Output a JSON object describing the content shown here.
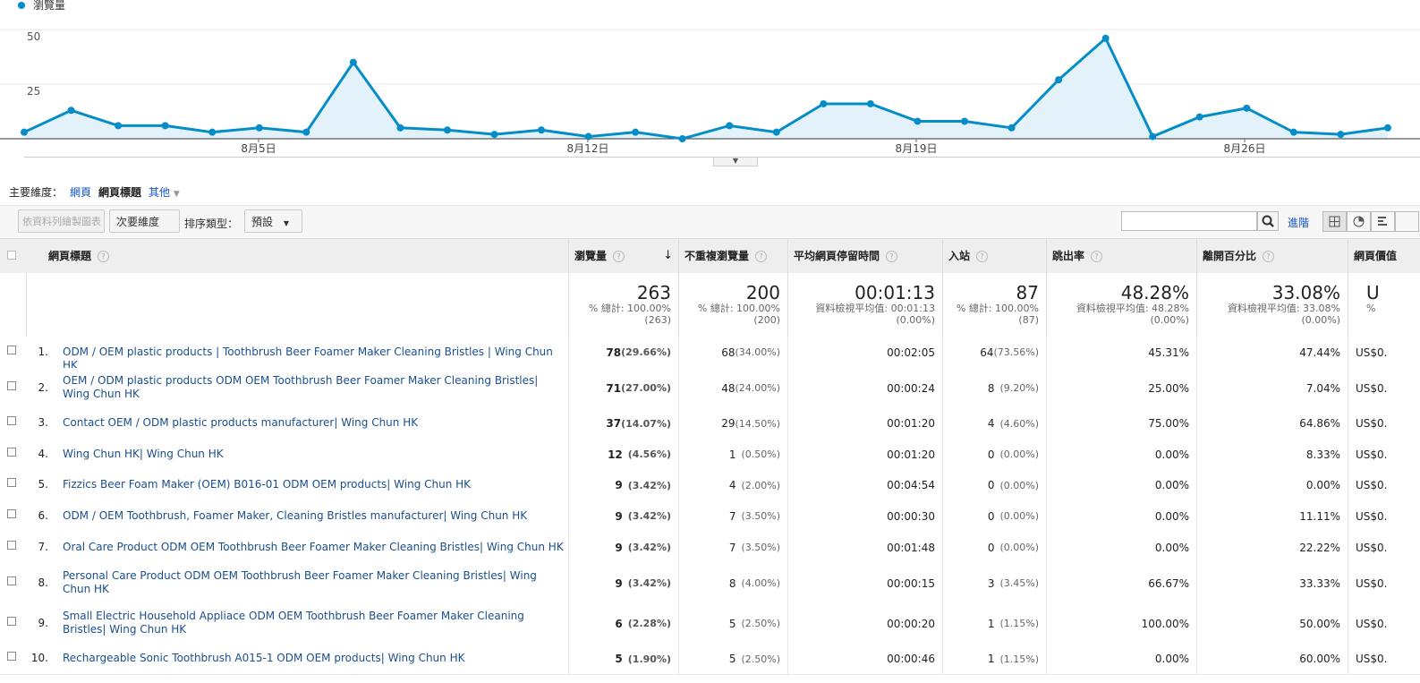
{
  "chart": {
    "legend": "瀏覽量",
    "y_ticks": [
      "50",
      "25"
    ],
    "x_labels": [
      "8月5日",
      "8月12日",
      "8月19日",
      "8月26日"
    ],
    "colors": {
      "line": "#058dc7",
      "fill": "#e3f2fa",
      "grid": "#e8e8e8"
    }
  },
  "chart_data": {
    "type": "area",
    "series": [
      {
        "name": "瀏覽量",
        "values": [
          3,
          13,
          6,
          6,
          3,
          5,
          3,
          35,
          5,
          4,
          2,
          4,
          1,
          3,
          0,
          6,
          3,
          16,
          16,
          8,
          8,
          5,
          27,
          46,
          1,
          10,
          14,
          3,
          2,
          5
        ]
      }
    ],
    "ylim": [
      0,
      50
    ],
    "x_tick_labels": [
      "8月5日",
      "8月12日",
      "8月19日",
      "8月26日"
    ]
  },
  "dimension": {
    "label": "主要維度：",
    "items": [
      "網頁",
      "網頁標題",
      "其他"
    ]
  },
  "toolbar": {
    "plot_rows": "依資料列繪製圖表",
    "secondary": "次要維度",
    "sort_label": "排序類型：",
    "sort_value": "預設",
    "advanced": "進階"
  },
  "table": {
    "headers": [
      "網頁標題",
      "瀏覽量",
      "不重複瀏覽量",
      "平均網頁停留時間",
      "入站",
      "跳出率",
      "離開百分比",
      "網頁價值"
    ],
    "totals": [
      {
        "big": "263",
        "sub1": "% 總計: 100.00%",
        "sub2": "(263)"
      },
      {
        "big": "200",
        "sub1": "% 總計: 100.00%",
        "sub2": "(200)"
      },
      {
        "big": "00:01:13",
        "sub1": "資料檢視平均值: 00:01:13",
        "sub2": "(0.00%)"
      },
      {
        "big": "87",
        "sub1": "% 總計: 100.00%",
        "sub2": "(87)"
      },
      {
        "big": "48.28%",
        "sub1": "資料檢視平均值: 48.28%",
        "sub2": "(0.00%)"
      },
      {
        "big": "33.08%",
        "sub1": "資料檢視平均值: 33.08%",
        "sub2": "(0.00%)"
      },
      {
        "big": "U",
        "sub1": "%",
        "sub2": ""
      }
    ],
    "rows": [
      {
        "n": "1.",
        "title": "ODM / OEM plastic products | Toothbrush Beer Foamer Maker Cleaning Bristles | Wing Chun HK",
        "pv": "78",
        "pvp": "(29.66%)",
        "upv": "68",
        "upvp": "(34.00%)",
        "time": "00:02:05",
        "ent": "64",
        "entp": "(73.56%)",
        "bounce": "45.31%",
        "exit": "47.44%",
        "value": "US$0."
      },
      {
        "n": "2.",
        "title": "OEM / ODM plastic products ODM OEM Toothbrush Beer Foamer Maker Cleaning Bristles| Wing Chun HK",
        "pv": "71",
        "pvp": "(27.00%)",
        "upv": "48",
        "upvp": "(24.00%)",
        "time": "00:00:24",
        "ent": "8",
        "entp": "(9.20%)",
        "bounce": "25.00%",
        "exit": "7.04%",
        "value": "US$0."
      },
      {
        "n": "3.",
        "title": "Contact OEM / ODM plastic products manufacturer| Wing Chun HK",
        "pv": "37",
        "pvp": "(14.07%)",
        "upv": "29",
        "upvp": "(14.50%)",
        "time": "00:01:20",
        "ent": "4",
        "entp": "(4.60%)",
        "bounce": "75.00%",
        "exit": "64.86%",
        "value": "US$0."
      },
      {
        "n": "4.",
        "title": "Wing Chun HK| Wing Chun HK",
        "pv": "12",
        "pvp": "(4.56%)",
        "upv": "1",
        "upvp": "(0.50%)",
        "time": "00:01:20",
        "ent": "0",
        "entp": "(0.00%)",
        "bounce": "0.00%",
        "exit": "8.33%",
        "value": "US$0."
      },
      {
        "n": "5.",
        "title": "Fizzics Beer Foam Maker (OEM) B016-01 ODM OEM products| Wing Chun HK",
        "pv": "9",
        "pvp": "(3.42%)",
        "upv": "4",
        "upvp": "(2.00%)",
        "time": "00:04:54",
        "ent": "0",
        "entp": "(0.00%)",
        "bounce": "0.00%",
        "exit": "0.00%",
        "value": "US$0."
      },
      {
        "n": "6.",
        "title": "ODM / OEM Toothbrush, Foamer Maker, Cleaning Bristles manufacturer| Wing Chun HK",
        "pv": "9",
        "pvp": "(3.42%)",
        "upv": "7",
        "upvp": "(3.50%)",
        "time": "00:00:30",
        "ent": "0",
        "entp": "(0.00%)",
        "bounce": "0.00%",
        "exit": "11.11%",
        "value": "US$0."
      },
      {
        "n": "7.",
        "title": "Oral Care Product ODM OEM Toothbrush Beer Foamer Maker Cleaning Bristles| Wing Chun HK",
        "pv": "9",
        "pvp": "(3.42%)",
        "upv": "7",
        "upvp": "(3.50%)",
        "time": "00:01:48",
        "ent": "0",
        "entp": "(0.00%)",
        "bounce": "0.00%",
        "exit": "22.22%",
        "value": "US$0."
      },
      {
        "n": "8.",
        "title": "Personal Care Product ODM OEM Toothbrush Beer Foamer Maker Cleaning Bristles| Wing Chun HK",
        "pv": "9",
        "pvp": "(3.42%)",
        "upv": "8",
        "upvp": "(4.00%)",
        "time": "00:00:15",
        "ent": "3",
        "entp": "(3.45%)",
        "bounce": "66.67%",
        "exit": "33.33%",
        "value": "US$0."
      },
      {
        "n": "9.",
        "title": "Small Electric Household Appliace ODM OEM Toothbrush Beer Foamer Maker Cleaning Bristles| Wing Chun HK",
        "pv": "6",
        "pvp": "(2.28%)",
        "upv": "5",
        "upvp": "(2.50%)",
        "time": "00:00:20",
        "ent": "1",
        "entp": "(1.15%)",
        "bounce": "100.00%",
        "exit": "50.00%",
        "value": "US$0."
      },
      {
        "n": "10.",
        "title": "Rechargeable Sonic Toothbrush A015-1 ODM OEM products| Wing Chun HK",
        "pv": "5",
        "pvp": "(1.90%)",
        "upv": "5",
        "upvp": "(2.50%)",
        "time": "00:00:46",
        "ent": "1",
        "entp": "(1.15%)",
        "bounce": "0.00%",
        "exit": "60.00%",
        "value": "US$0."
      }
    ]
  }
}
